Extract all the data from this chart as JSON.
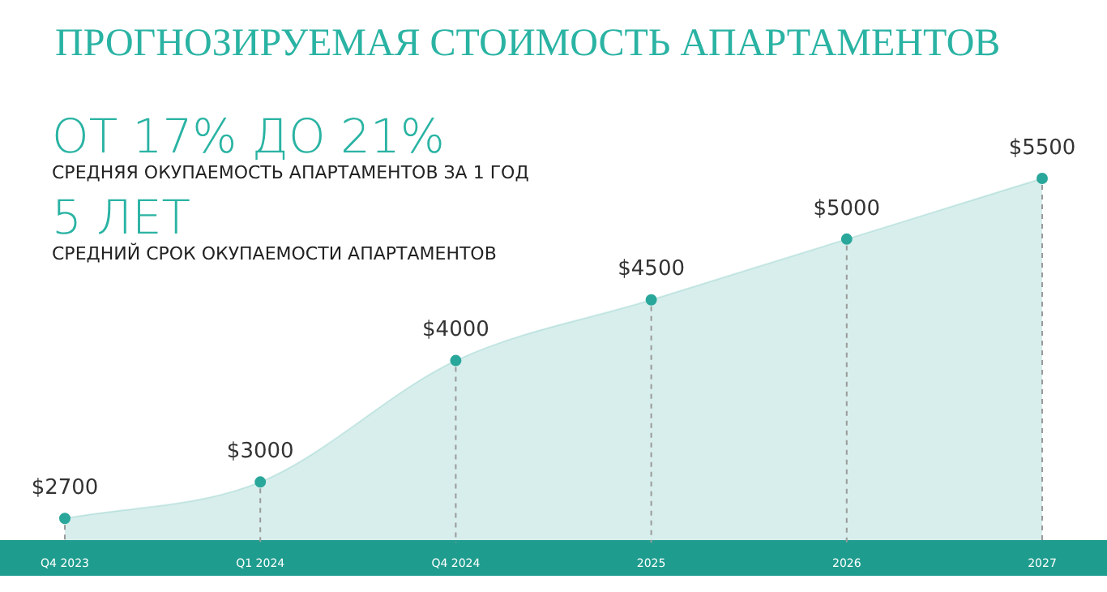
{
  "chart_data": {
    "type": "area",
    "title": "ПРОГНОЗИРУЕМАЯ СТОИМОСТЬ АПАРТАМЕНТОВ",
    "annotations": [
      "ОТ 17% ДО 21%",
      "СРЕДНЯЯ ОКУПАЕМОСТЬ АПАРТАМЕНТОВ ЗА 1 ГОД",
      "5 ЛЕТ",
      "СРЕДНИЙ СРОК ОКУПАЕМОСТИ АПАРТАМЕНТОВ"
    ],
    "categories": [
      "Q4 2023",
      "Q1 2024",
      "Q4 2024",
      "2025",
      "2026",
      "2027"
    ],
    "values": [
      2700,
      3000,
      4000,
      4500,
      5000,
      5500
    ],
    "value_labels": [
      "$2700",
      "$3000",
      "$4000",
      "$4500",
      "$5000",
      "$5500"
    ],
    "color": "#2aa79b",
    "marker": "circle",
    "grid": false,
    "legend": false
  }
}
